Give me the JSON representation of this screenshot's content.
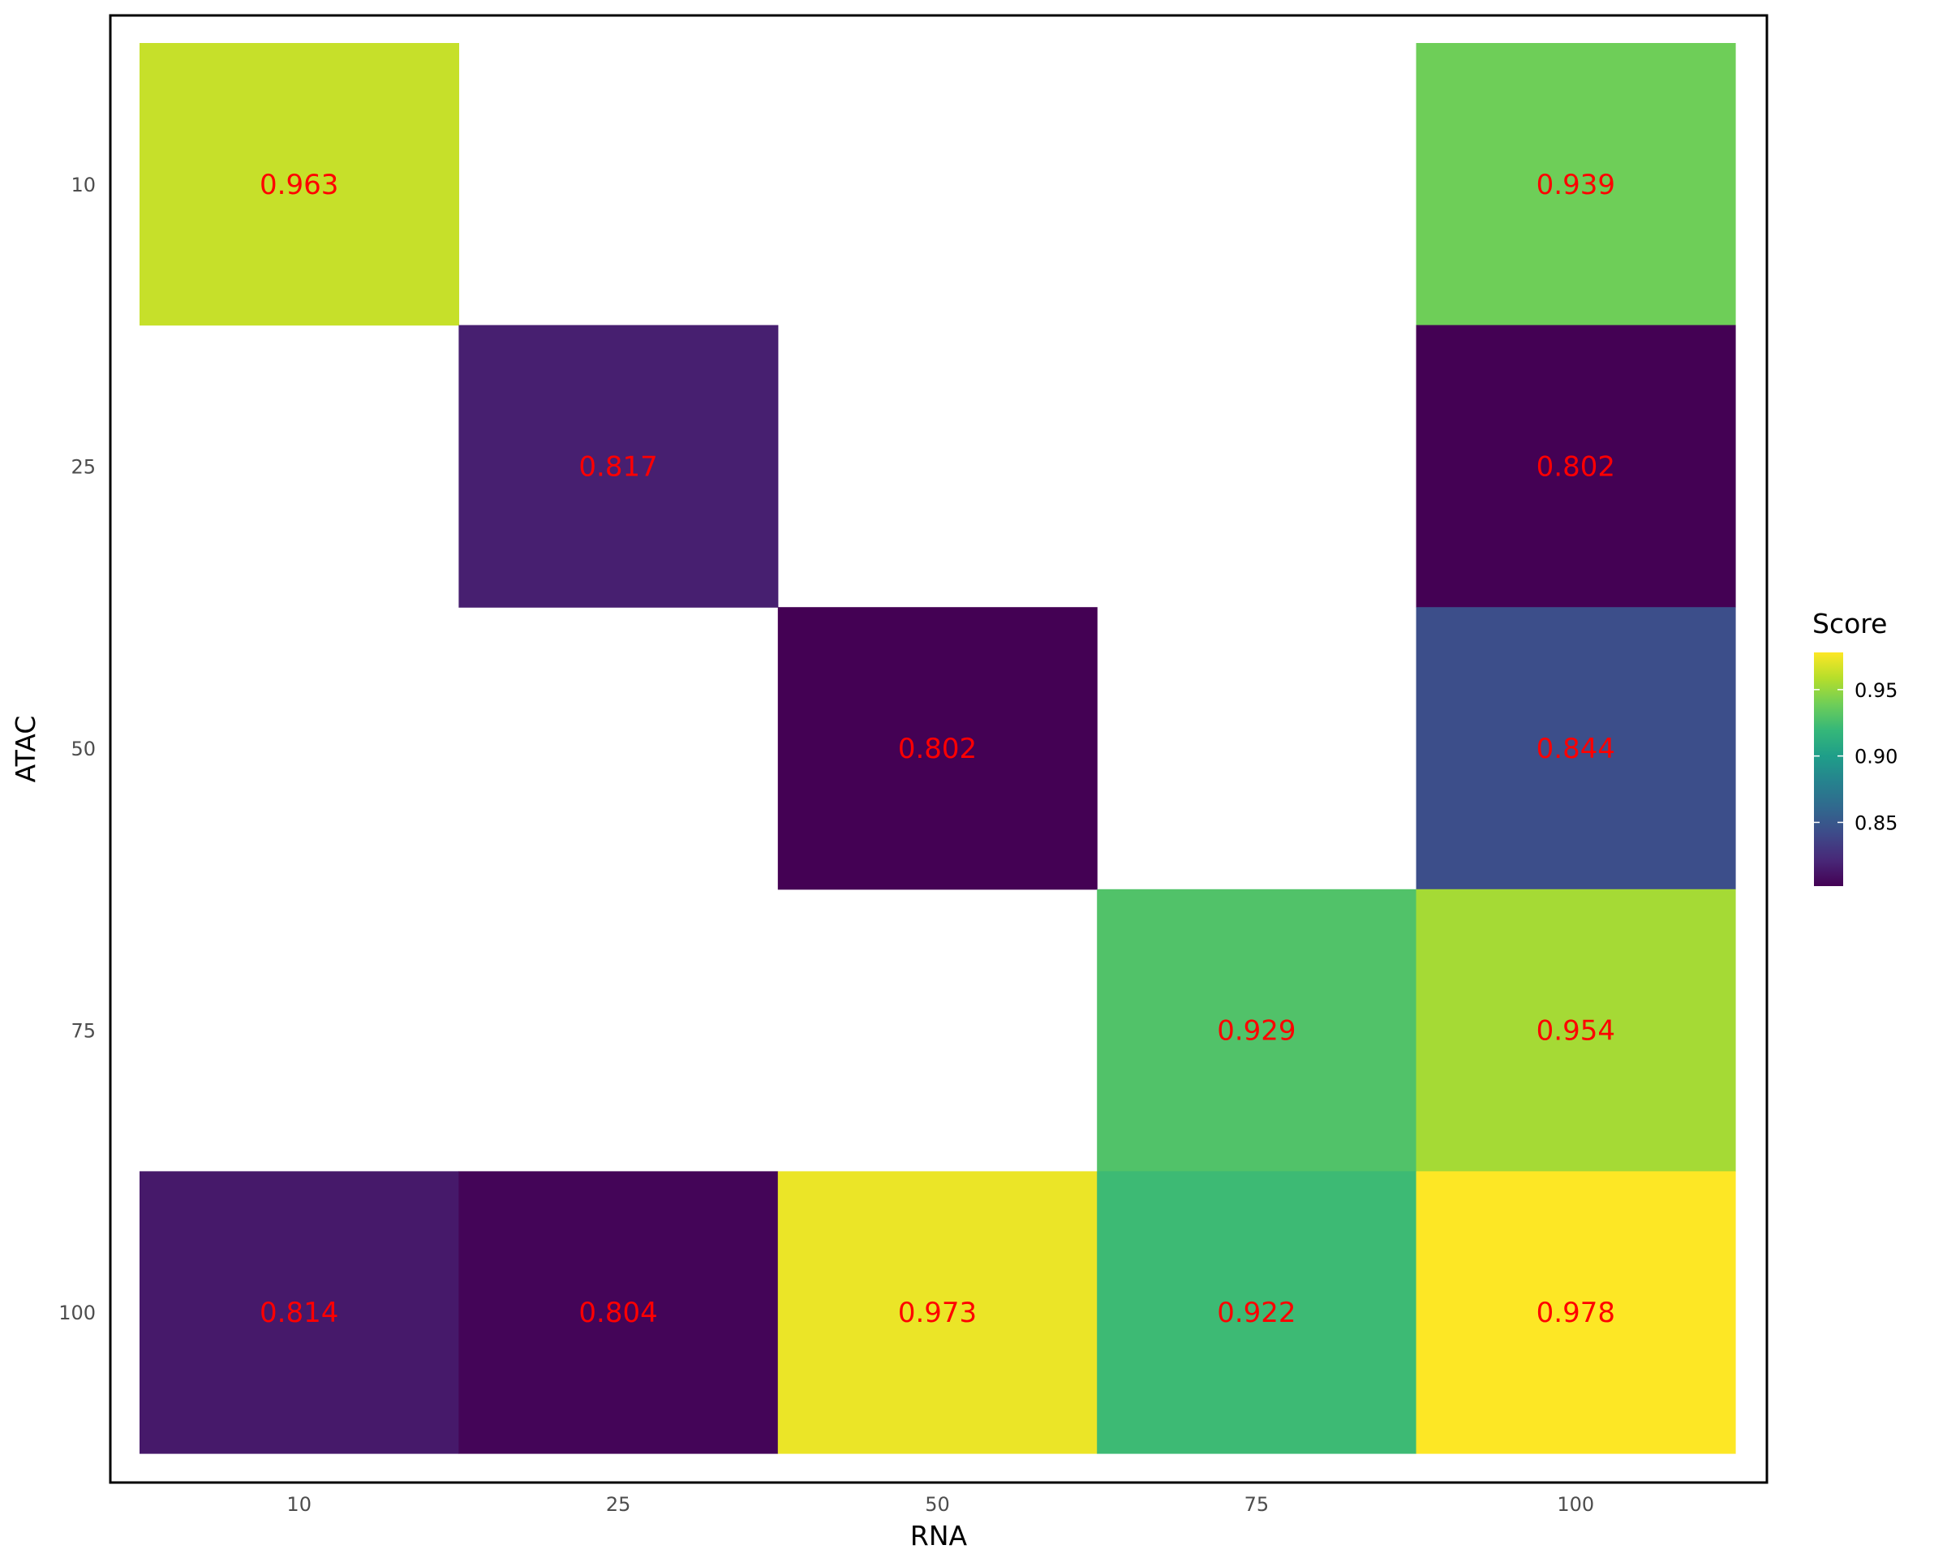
{
  "chart_data": {
    "type": "heatmap",
    "xlabel": "RNA",
    "ylabel": "ATAC",
    "x_categories": [
      "10",
      "25",
      "50",
      "75",
      "100"
    ],
    "y_categories": [
      "10",
      "25",
      "50",
      "75",
      "100"
    ],
    "cells": [
      {
        "x": "10",
        "y": "10",
        "value": 0.963,
        "label": "0.963"
      },
      {
        "x": "100",
        "y": "10",
        "value": 0.939,
        "label": "0.939"
      },
      {
        "x": "25",
        "y": "25",
        "value": 0.817,
        "label": "0.817"
      },
      {
        "x": "100",
        "y": "25",
        "value": 0.802,
        "label": "0.802"
      },
      {
        "x": "50",
        "y": "50",
        "value": 0.802,
        "label": "0.802"
      },
      {
        "x": "100",
        "y": "50",
        "value": 0.844,
        "label": "0.844"
      },
      {
        "x": "75",
        "y": "75",
        "value": 0.929,
        "label": "0.929"
      },
      {
        "x": "100",
        "y": "75",
        "value": 0.954,
        "label": "0.954"
      },
      {
        "x": "10",
        "y": "100",
        "value": 0.814,
        "label": "0.814"
      },
      {
        "x": "25",
        "y": "100",
        "value": 0.804,
        "label": "0.804"
      },
      {
        "x": "50",
        "y": "100",
        "value": 0.973,
        "label": "0.973"
      },
      {
        "x": "75",
        "y": "100",
        "value": 0.922,
        "label": "0.922"
      },
      {
        "x": "100",
        "y": "100",
        "value": 0.978,
        "label": "0.978"
      }
    ],
    "legend": {
      "title": "Score",
      "position": "right",
      "range": [
        0.802,
        0.978
      ],
      "ticks": [
        0.85,
        0.9,
        0.95
      ],
      "tick_labels": [
        "0.85",
        "0.90",
        "0.95"
      ],
      "colormap": "viridis"
    },
    "grid": false,
    "panel_border": true
  },
  "colors": {
    "label_text": "#ff0000",
    "panel_border": "#000000",
    "viridis_stops": [
      "#440154",
      "#482878",
      "#3e4a89",
      "#31688e",
      "#26828e",
      "#1f9e89",
      "#35b779",
      "#6ece58",
      "#b5de2b",
      "#fde725"
    ]
  }
}
